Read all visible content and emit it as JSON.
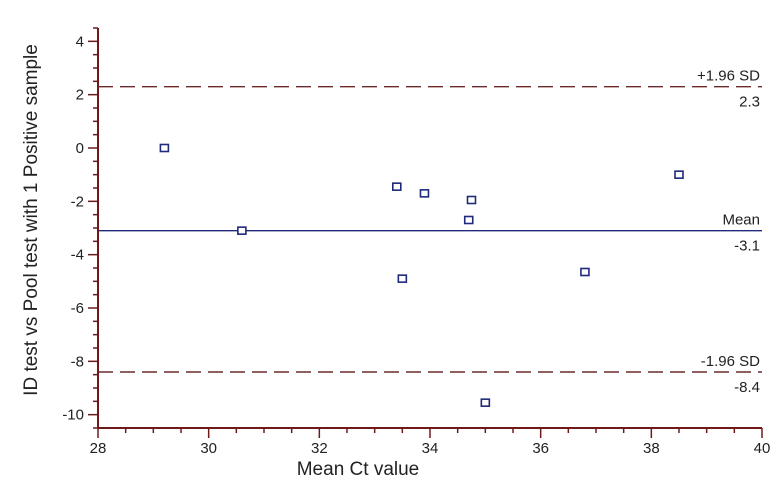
{
  "colors": {
    "axis": "#6e1a1a",
    "mean_line": "#1f2a7a",
    "limit_line": "#6b2b2b",
    "marker": "#1f2a7a",
    "text": "#222222"
  },
  "chart_data": {
    "type": "scatter",
    "title": "",
    "xlabel": "Mean Ct value",
    "ylabel": "ID test vs Pool test with 1 Positive sample",
    "xlim": [
      28,
      40
    ],
    "ylim": [
      -10.5,
      4.5
    ],
    "x_ticks": [
      28,
      30,
      32,
      34,
      36,
      38,
      40
    ],
    "y_ticks": [
      4,
      2,
      0,
      -2,
      -4,
      -6,
      -8,
      -10
    ],
    "grid": false,
    "points": [
      {
        "x": 29.2,
        "y": 0.0
      },
      {
        "x": 30.6,
        "y": -3.1
      },
      {
        "x": 33.4,
        "y": -1.45
      },
      {
        "x": 33.5,
        "y": -4.9
      },
      {
        "x": 33.9,
        "y": -1.7
      },
      {
        "x": 34.7,
        "y": -2.7
      },
      {
        "x": 34.75,
        "y": -1.95
      },
      {
        "x": 35.0,
        "y": -9.55
      },
      {
        "x": 36.8,
        "y": -4.65
      },
      {
        "x": 38.5,
        "y": -1.0
      }
    ],
    "reference_lines": [
      {
        "name": "+1.96 SD",
        "value": 2.3,
        "value_label": "2.3",
        "style": "dashed"
      },
      {
        "name": "Mean",
        "value": -3.1,
        "value_label": "-3.1",
        "style": "solid"
      },
      {
        "name": "-1.96 SD",
        "value": -8.4,
        "value_label": "-8.4",
        "style": "dashed"
      }
    ]
  }
}
